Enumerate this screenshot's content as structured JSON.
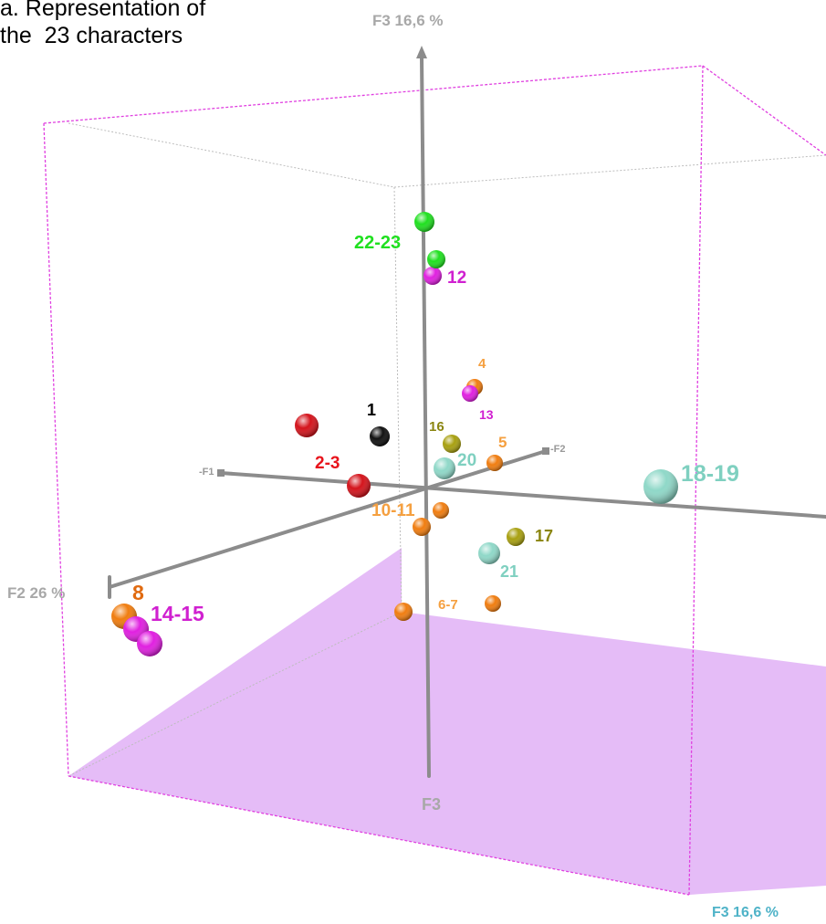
{
  "caption": {
    "line1": "a. Representation of",
    "line2": "the  23 characters"
  },
  "colors": {
    "box": "#e040e0",
    "floor": "#e4b8f7",
    "axis": "#8c8c8c",
    "axis_label": "#a8a8a8",
    "corner_label": "#4fb3c8"
  },
  "chart_data": {
    "type": "scatter",
    "title": "a. Representation of the  23 characters",
    "axes": {
      "f3_top": "F3 16,6 %",
      "f2_end": "F2 26 %",
      "f1_neg": "-F1",
      "f2_neg": "-F2",
      "f3_bottom": "F3",
      "corner": "F3 16,6 %"
    },
    "grid": false,
    "legend": "none",
    "points": [
      {
        "label": "1",
        "chars": [
          "1"
        ],
        "color": "#111111",
        "label_color": "#000000"
      },
      {
        "label": "2-3",
        "chars": [
          "2",
          "3"
        ],
        "color": "#d4141c",
        "label_color": "#e8141c"
      },
      {
        "label": "4",
        "chars": [
          "4"
        ],
        "color": "#f07d10",
        "label_color": "#f5a040"
      },
      {
        "label": "5",
        "chars": [
          "5"
        ],
        "color": "#f07d10",
        "label_color": "#f5a040"
      },
      {
        "label": "6-7",
        "chars": [
          "6",
          "7"
        ],
        "color": "#f07d10",
        "label_color": "#f5a040"
      },
      {
        "label": "8",
        "chars": [
          "8"
        ],
        "color": "#f07d10",
        "label_color": "#e06a10"
      },
      {
        "label": "10-11",
        "chars": [
          "10",
          "11"
        ],
        "color": "#f07d10",
        "label_color": "#f5a040"
      },
      {
        "label": "12",
        "chars": [
          "12"
        ],
        "color": "#e020e0",
        "label_color": "#d020d0"
      },
      {
        "label": "13",
        "chars": [
          "13"
        ],
        "color": "#e020e0",
        "label_color": "#d020d0"
      },
      {
        "label": "14-15",
        "chars": [
          "14",
          "15"
        ],
        "color": "#e020e0",
        "label_color": "#d020d0"
      },
      {
        "label": "16",
        "chars": [
          "16"
        ],
        "color": "#a8a010",
        "label_color": "#8a8510"
      },
      {
        "label": "17",
        "chars": [
          "17"
        ],
        "color": "#a8a010",
        "label_color": "#8a8510"
      },
      {
        "label": "18-19",
        "chars": [
          "18",
          "19"
        ],
        "color": "#8fd8c8",
        "label_color": "#7fd0c0"
      },
      {
        "label": "20",
        "chars": [
          "20"
        ],
        "color": "#8fd8c8",
        "label_color": "#7fd0c0"
      },
      {
        "label": "21",
        "chars": [
          "21"
        ],
        "color": "#8fd8c8",
        "label_color": "#7fd0c0"
      },
      {
        "label": "22-23",
        "chars": [
          "22",
          "23"
        ],
        "color": "#20e020",
        "label_color": "#20e020"
      }
    ]
  }
}
